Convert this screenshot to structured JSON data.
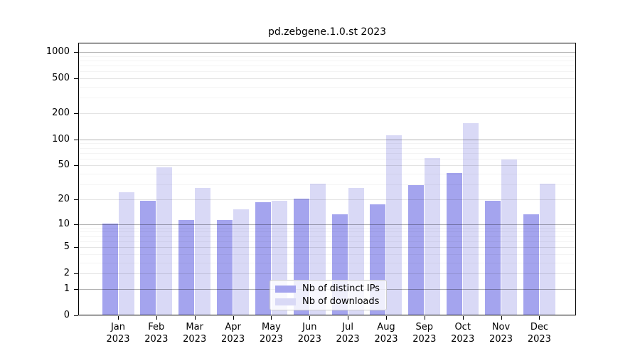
{
  "chart_data": {
    "type": "bar",
    "title": "pd.zebgene.1.0.st 2023",
    "categories": [
      "Jan 2023",
      "Feb 2023",
      "Mar 2023",
      "Apr 2023",
      "May 2023",
      "Jun 2023",
      "Jul 2023",
      "Aug 2023",
      "Sep 2023",
      "Oct 2023",
      "Nov 2023",
      "Dec 2023"
    ],
    "series": [
      {
        "name": "Nb of distinct IPs",
        "color": "#a4a4ee",
        "values": [
          10,
          19,
          11,
          11,
          18,
          20,
          13,
          17,
          29,
          40,
          19,
          13
        ]
      },
      {
        "name": "Nb of downloads",
        "color": "#d9d9f6",
        "values": [
          24,
          47,
          27,
          15,
          19,
          30,
          27,
          110,
          60,
          150,
          58,
          30
        ]
      }
    ],
    "yscale": "log10(x+1)",
    "yticks": [
      0,
      1,
      2,
      5,
      10,
      20,
      50,
      100,
      200,
      500,
      1000
    ],
    "ylim": [
      0,
      1000
    ],
    "grid": "on",
    "legend_position": "lower center"
  }
}
